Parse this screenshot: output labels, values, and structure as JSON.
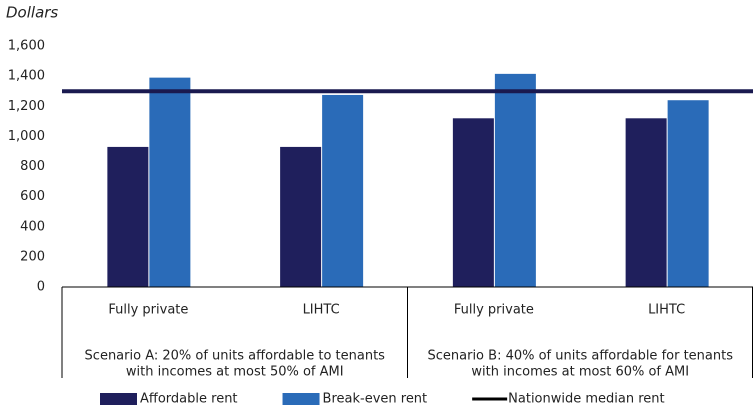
{
  "chart_data": {
    "type": "bar",
    "y_axis_label": "Dollars",
    "categories": [
      "Fully private",
      "LIHTC",
      "Fully private",
      "LIHTC"
    ],
    "groups": [
      {
        "lines": [
          "Scenario A: 20% of units affordable to tenants",
          "with incomes at most 50% of AMI"
        ]
      },
      {
        "lines": [
          "Scenario B: 40% of units affordable for tenants",
          "with incomes at most 60% of AMI"
        ]
      }
    ],
    "series": [
      {
        "name": "Affordable rent",
        "color": "#1f1f5c",
        "values": [
          930,
          930,
          1120,
          1120
        ]
      },
      {
        "name": "Break-even rent",
        "color": "#2a6bb8",
        "values": [
          1390,
          1275,
          1415,
          1240
        ]
      }
    ],
    "reference_lines": [
      {
        "name": "Nationwide median rent",
        "value": 1300,
        "color": "#1a1a50"
      }
    ],
    "ylim": [
      0,
      1600
    ],
    "yticks": [
      0,
      200,
      400,
      600,
      800,
      {
        "value": 1000,
        "label": "1,000"
      },
      {
        "value": 1200,
        "label": "1,200"
      },
      {
        "value": 1400,
        "label": "1,400"
      },
      {
        "value": 1600,
        "label": "1,600"
      }
    ],
    "grid": false,
    "legend": "bottom"
  }
}
